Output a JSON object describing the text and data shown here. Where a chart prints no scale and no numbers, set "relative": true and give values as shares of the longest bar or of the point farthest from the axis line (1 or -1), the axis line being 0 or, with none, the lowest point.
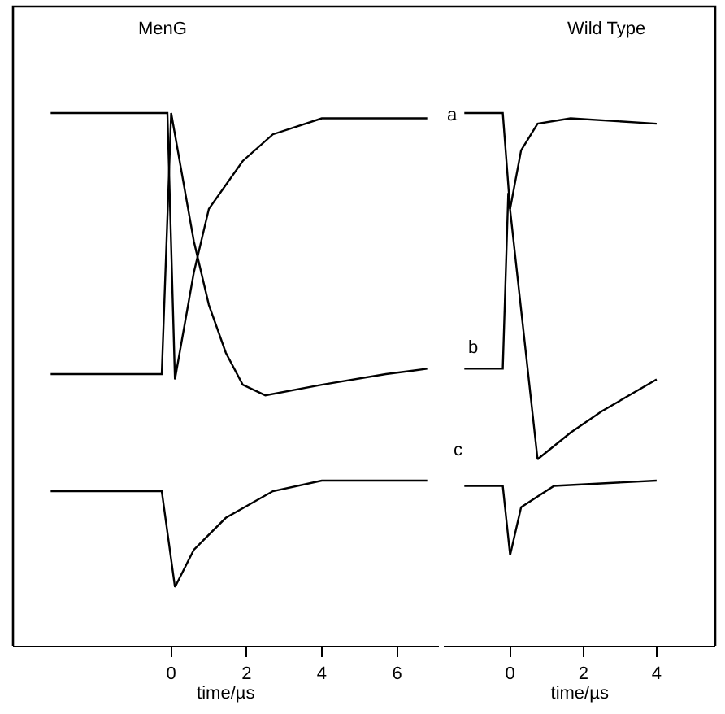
{
  "chart_data": [
    {
      "type": "line",
      "title": "MenG",
      "xlabel": "time/µs",
      "relative": true,
      "xlim": [
        -4.2,
        7.1
      ],
      "xticks": [
        0,
        2,
        4,
        6
      ],
      "marker": "none",
      "line_style": "solid",
      "series": [
        {
          "color": "#000000",
          "x": [
            -3.2,
            -0.1,
            0.1,
            0.6,
            1.0,
            1.9,
            2.7,
            4.0,
            6.8
          ],
          "values": [
            1.0,
            1.0,
            0.5,
            0.7,
            0.82,
            0.91,
            0.96,
            0.99,
            0.99
          ]
        },
        {
          "color": "#000000",
          "x": [
            -3.2,
            -0.25,
            0,
            0.6,
            1.0,
            1.45,
            1.9,
            2.5,
            4.0,
            5.7,
            6.8
          ],
          "values": [
            0.51,
            0.51,
            1.0,
            0.76,
            0.64,
            0.55,
            0.49,
            0.47,
            0.49,
            0.51,
            0.52
          ]
        },
        {
          "color": "#000000",
          "x": [
            -3.2,
            -0.25,
            0.1,
            0.6,
            1.45,
            2.7,
            4.0,
            6.8
          ],
          "values": [
            0.29,
            0.29,
            0.11,
            0.18,
            0.24,
            0.29,
            0.31,
            0.31
          ]
        }
      ]
    },
    {
      "type": "line",
      "title": "Wild Type",
      "xlabel": "time/µs",
      "relative": true,
      "xlim": [
        -1.8,
        5.6
      ],
      "xticks": [
        0,
        2,
        4
      ],
      "marker": "none",
      "line_style": "solid",
      "annotations": [
        "a",
        "b",
        "c"
      ],
      "series": [
        {
          "color": "#000000",
          "x": [
            -1.25,
            -0.2,
            0,
            0.3,
            0.75,
            1.65,
            4.0
          ],
          "values": [
            1.0,
            1.0,
            0.82,
            0.93,
            0.98,
            0.99,
            0.98
          ]
        },
        {
          "color": "#000000",
          "x": [
            -1.25,
            -0.2,
            -0.05,
            0.75,
            1.65,
            2.5,
            4.0
          ],
          "values": [
            0.52,
            0.52,
            0.85,
            0.35,
            0.4,
            0.44,
            0.5
          ]
        },
        {
          "color": "#000000",
          "x": [
            -1.25,
            -0.2,
            0,
            0.3,
            1.2,
            4.0
          ],
          "values": [
            0.3,
            0.3,
            0.17,
            0.26,
            0.3,
            0.31
          ]
        }
      ]
    }
  ]
}
